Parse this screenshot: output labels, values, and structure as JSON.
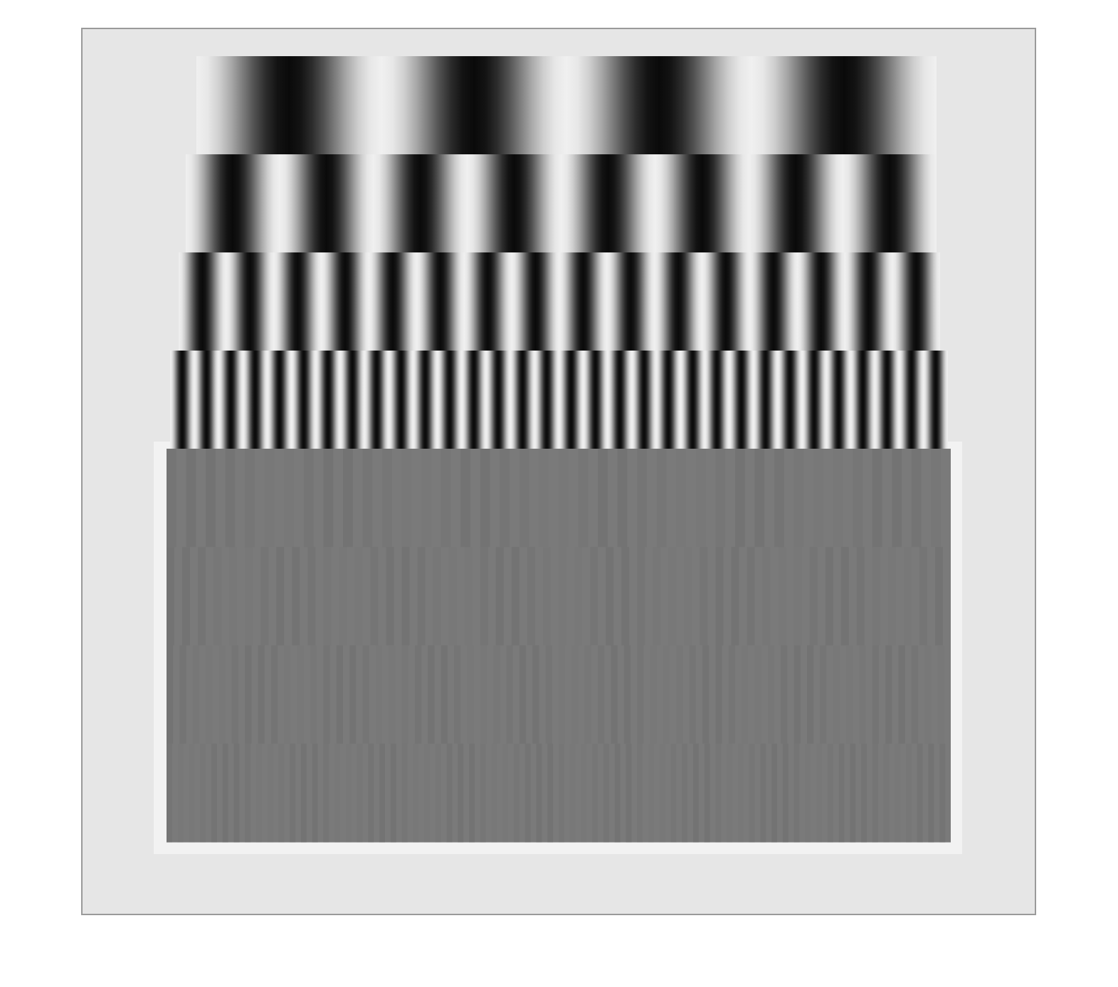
{
  "image": {
    "kind": "grating-test-pattern",
    "background_color": "#ffffff",
    "frame_fill_color": "#e6e6e6",
    "frame_border_color": "#9a9a9a",
    "grating_gray_color": "#7a7a7a",
    "visible_bands": [
      {
        "cycles": 4,
        "profile": "sinusoidal"
      },
      {
        "cycles": 8,
        "profile": "sinusoidal"
      },
      {
        "cycles": 16,
        "profile": "sinusoidal"
      },
      {
        "cycles": 32,
        "profile": "sinusoidal"
      }
    ],
    "aliased_bands": 4,
    "text": []
  }
}
